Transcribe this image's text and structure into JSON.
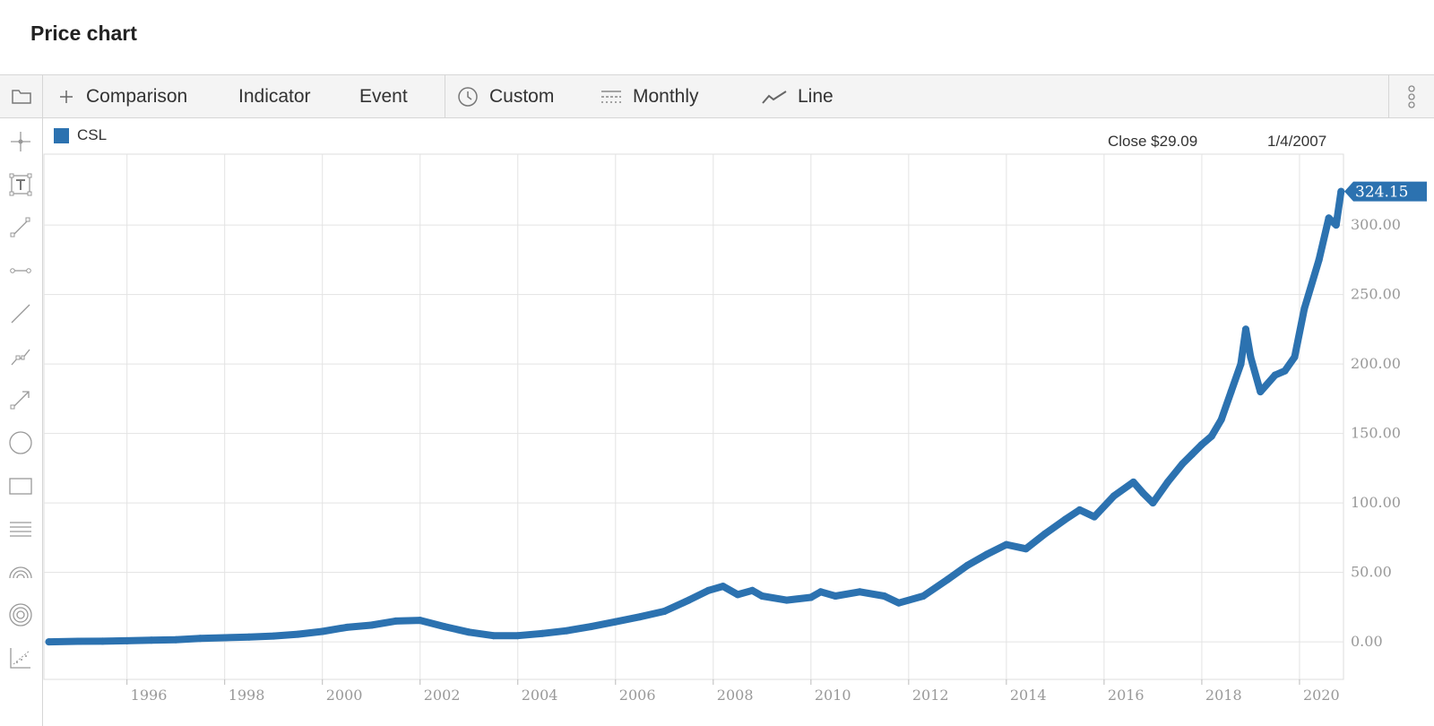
{
  "page": {
    "title": "Price chart"
  },
  "toolbar": {
    "comparison_label": "Comparison",
    "indicator_label": "Indicator",
    "event_label": "Event",
    "range_label": "Custom",
    "period_label": "Monthly",
    "style_label": "Line"
  },
  "sidebar": {
    "tools": [
      "crosshair-icon",
      "text-tool-icon",
      "line-segment-icon",
      "horizontal-segment-icon",
      "straight-line-icon",
      "polyline-icon",
      "arrow-line-icon",
      "circle-icon",
      "rectangle-icon",
      "parallel-lines-icon",
      "arc-icon",
      "concentric-circles-icon",
      "scatter-tool-icon"
    ]
  },
  "legend": {
    "symbol": "CSL",
    "color": "#2c72b0"
  },
  "readout": {
    "close": "Close $29.09",
    "date": "1/4/2007"
  },
  "chart_data": {
    "type": "line",
    "series": [
      {
        "name": "CSL",
        "color": "#2c72b0",
        "points": [
          [
            1994.4,
            0
          ],
          [
            1995.0,
            0.4
          ],
          [
            1995.5,
            0.5
          ],
          [
            1996.0,
            0.8
          ],
          [
            1996.5,
            1.2
          ],
          [
            1997.0,
            1.6
          ],
          [
            1997.5,
            2.5
          ],
          [
            1998.0,
            3.0
          ],
          [
            1998.5,
            3.5
          ],
          [
            1999.0,
            4.2
          ],
          [
            1999.5,
            5.5
          ],
          [
            2000.0,
            7.5
          ],
          [
            2000.5,
            10.5
          ],
          [
            2001.0,
            12.0
          ],
          [
            2001.5,
            15.0
          ],
          [
            2002.0,
            15.5
          ],
          [
            2002.5,
            11.0
          ],
          [
            2003.0,
            7.0
          ],
          [
            2003.5,
            4.5
          ],
          [
            2004.0,
            4.5
          ],
          [
            2004.5,
            6.0
          ],
          [
            2005.0,
            8.0
          ],
          [
            2005.5,
            11.0
          ],
          [
            2006.0,
            14.5
          ],
          [
            2006.5,
            18.0
          ],
          [
            2007.0,
            22.0
          ],
          [
            2007.5,
            30.0
          ],
          [
            2007.9,
            37.0
          ],
          [
            2008.2,
            40.0
          ],
          [
            2008.5,
            34.0
          ],
          [
            2008.8,
            37.0
          ],
          [
            2009.0,
            33.0
          ],
          [
            2009.5,
            30.0
          ],
          [
            2010.0,
            32.0
          ],
          [
            2010.2,
            36.0
          ],
          [
            2010.5,
            33.0
          ],
          [
            2011.0,
            36.0
          ],
          [
            2011.5,
            33.0
          ],
          [
            2011.8,
            28.0
          ],
          [
            2012.3,
            33.0
          ],
          [
            2012.8,
            45.0
          ],
          [
            2013.2,
            55.0
          ],
          [
            2013.6,
            63.0
          ],
          [
            2014.0,
            70.0
          ],
          [
            2014.4,
            67.0
          ],
          [
            2014.8,
            78.0
          ],
          [
            2015.2,
            88.0
          ],
          [
            2015.5,
            95.0
          ],
          [
            2015.8,
            90.0
          ],
          [
            2016.2,
            105.0
          ],
          [
            2016.6,
            115.0
          ],
          [
            2016.8,
            107.0
          ],
          [
            2017.0,
            100.0
          ],
          [
            2017.3,
            115.0
          ],
          [
            2017.6,
            128.0
          ],
          [
            2017.8,
            135.0
          ],
          [
            2018.0,
            142.0
          ],
          [
            2018.2,
            148.0
          ],
          [
            2018.4,
            160.0
          ],
          [
            2018.6,
            180.0
          ],
          [
            2018.8,
            200.0
          ],
          [
            2018.9,
            225.0
          ],
          [
            2019.0,
            205.0
          ],
          [
            2019.2,
            180.0
          ],
          [
            2019.5,
            192.0
          ],
          [
            2019.7,
            195.0
          ],
          [
            2019.9,
            205.0
          ],
          [
            2020.1,
            240.0
          ],
          [
            2020.4,
            275.0
          ],
          [
            2020.6,
            305.0
          ],
          [
            2020.75,
            300.0
          ],
          [
            2020.85,
            324.15
          ]
        ]
      }
    ],
    "x_ticks": [
      "1996",
      "1998",
      "2000",
      "2002",
      "2004",
      "2006",
      "2008",
      "2010",
      "2012",
      "2014",
      "2016",
      "2018",
      "2020"
    ],
    "y_ticks": [
      "0.00",
      "50.00",
      "100.00",
      "150.00",
      "200.00",
      "250.00",
      "300.00"
    ],
    "xlim": [
      1994.3,
      2020.9
    ],
    "ylim": [
      -27,
      351
    ],
    "grid": true,
    "last_value_label": "324.15",
    "legend_position": "top-left"
  }
}
